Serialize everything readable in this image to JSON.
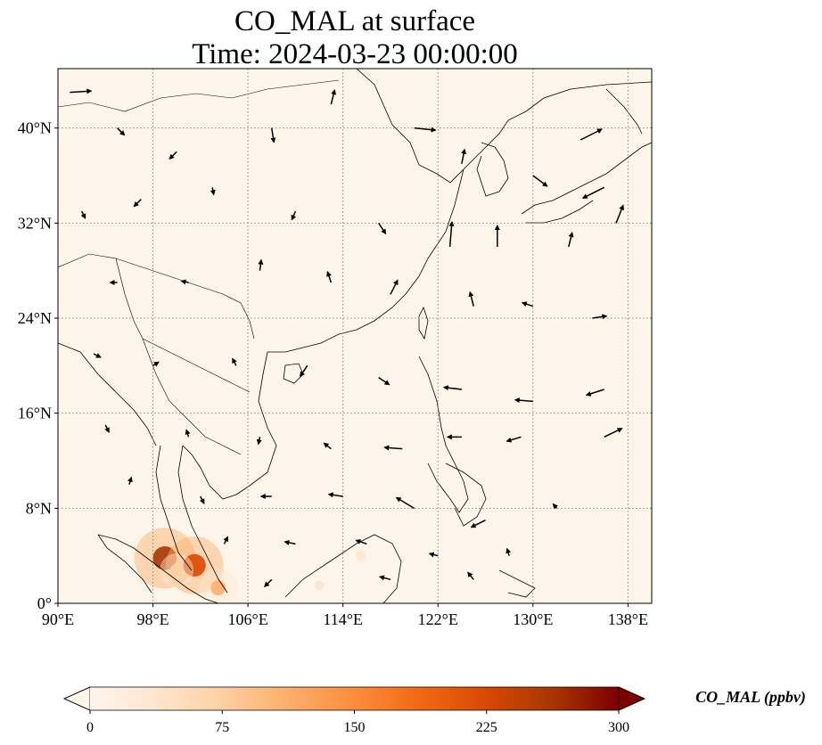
{
  "title": {
    "line1": "CO_MAL at surface",
    "line2": "Time: 2024-03-23 00:00:00"
  },
  "map": {
    "lon_range": [
      90,
      140
    ],
    "lat_range": [
      0,
      45
    ],
    "lon_ticks": [
      {
        "value": 90,
        "label": "90°E"
      },
      {
        "value": 98,
        "label": "98°E"
      },
      {
        "value": 106,
        "label": "106°E"
      },
      {
        "value": 114,
        "label": "114°E"
      },
      {
        "value": 122,
        "label": "122°E"
      },
      {
        "value": 130,
        "label": "130°E"
      },
      {
        "value": 138,
        "label": "138°E"
      }
    ],
    "lat_ticks": [
      {
        "value": 0,
        "label": "0°"
      },
      {
        "value": 8,
        "label": "8°N"
      },
      {
        "value": 16,
        "label": "16°N"
      },
      {
        "value": 24,
        "label": "24°N"
      },
      {
        "value": 32,
        "label": "32°N"
      },
      {
        "value": 40,
        "label": "40°N"
      }
    ],
    "gridlines": true,
    "background_color": "#fef6eb",
    "hotspots": [
      {
        "lon": 99.0,
        "lat": 3.8,
        "value": 260
      },
      {
        "lon": 101.5,
        "lat": 3.2,
        "value": 240
      },
      {
        "lon": 100.0,
        "lat": 2.8,
        "value": 90
      },
      {
        "lon": 103.5,
        "lat": 1.3,
        "value": 120
      },
      {
        "lon": 115.5,
        "lat": 4.0,
        "value": 40
      },
      {
        "lon": 112.0,
        "lat": 1.5,
        "value": 30
      }
    ],
    "wind_vectors": [
      {
        "lon": 91,
        "lat": 43,
        "u": 3,
        "v": 0.2
      },
      {
        "lon": 95,
        "lat": 40,
        "u": 1,
        "v": -1
      },
      {
        "lon": 100,
        "lat": 38,
        "u": -1,
        "v": -1
      },
      {
        "lon": 108,
        "lat": 40,
        "u": 0.3,
        "v": -2
      },
      {
        "lon": 113,
        "lat": 42,
        "u": 0.5,
        "v": 2
      },
      {
        "lon": 120,
        "lat": 40,
        "u": 3,
        "v": -0.3
      },
      {
        "lon": 124,
        "lat": 37,
        "u": 0.4,
        "v": 2
      },
      {
        "lon": 130,
        "lat": 36,
        "u": 2,
        "v": -1.5
      },
      {
        "lon": 134,
        "lat": 39,
        "u": 3,
        "v": 1.5
      },
      {
        "lon": 136,
        "lat": 35,
        "u": -3,
        "v": -1.5
      },
      {
        "lon": 92,
        "lat": 33,
        "u": 0.5,
        "v": -1
      },
      {
        "lon": 97,
        "lat": 34,
        "u": -1,
        "v": -1
      },
      {
        "lon": 103,
        "lat": 35,
        "u": 0.2,
        "v": -1
      },
      {
        "lon": 110,
        "lat": 33,
        "u": -0.5,
        "v": -1.2
      },
      {
        "lon": 117,
        "lat": 32,
        "u": 1,
        "v": -1.5
      },
      {
        "lon": 123,
        "lat": 30,
        "u": 0.3,
        "v": 3.5
      },
      {
        "lon": 127,
        "lat": 30,
        "u": 0,
        "v": 3
      },
      {
        "lon": 133,
        "lat": 30,
        "u": 0.5,
        "v": 2
      },
      {
        "lon": 137,
        "lat": 32,
        "u": 1,
        "v": 2.5
      },
      {
        "lon": 95,
        "lat": 27,
        "u": -1,
        "v": 0
      },
      {
        "lon": 101,
        "lat": 27,
        "u": -1,
        "v": 0.2
      },
      {
        "lon": 107,
        "lat": 28,
        "u": 0.2,
        "v": 1.5
      },
      {
        "lon": 113,
        "lat": 27,
        "u": -0.5,
        "v": 1.5
      },
      {
        "lon": 118,
        "lat": 26,
        "u": 1,
        "v": 2
      },
      {
        "lon": 125,
        "lat": 25,
        "u": -0.5,
        "v": 2
      },
      {
        "lon": 130,
        "lat": 25,
        "u": -1.5,
        "v": 0.5
      },
      {
        "lon": 135,
        "lat": 24,
        "u": 2,
        "v": 0.3
      },
      {
        "lon": 93,
        "lat": 21,
        "u": 1,
        "v": -0.5
      },
      {
        "lon": 98,
        "lat": 20,
        "u": 0.8,
        "v": 0.5
      },
      {
        "lon": 105,
        "lat": 20,
        "u": -0.5,
        "v": 1
      },
      {
        "lon": 111,
        "lat": 20,
        "u": -1,
        "v": -1.5
      },
      {
        "lon": 117,
        "lat": 19,
        "u": 1.5,
        "v": -1
      },
      {
        "lon": 124,
        "lat": 18,
        "u": -2.5,
        "v": 0.3
      },
      {
        "lon": 130,
        "lat": 17,
        "u": -2.5,
        "v": 0.2
      },
      {
        "lon": 136,
        "lat": 18,
        "u": -2.5,
        "v": -0.8
      },
      {
        "lon": 94,
        "lat": 15,
        "u": 0.5,
        "v": -1
      },
      {
        "lon": 101,
        "lat": 14,
        "u": -0.3,
        "v": 1
      },
      {
        "lon": 107,
        "lat": 14,
        "u": -0.2,
        "v": -1
      },
      {
        "lon": 113,
        "lat": 13,
        "u": -1,
        "v": 0.8
      },
      {
        "lon": 119,
        "lat": 13,
        "u": -2.5,
        "v": 0.2
      },
      {
        "lon": 124,
        "lat": 14,
        "u": -2,
        "v": 0
      },
      {
        "lon": 129,
        "lat": 14,
        "u": -2,
        "v": -0.6
      },
      {
        "lon": 136,
        "lat": 14,
        "u": 2.5,
        "v": 1.2
      },
      {
        "lon": 96,
        "lat": 10,
        "u": 0.3,
        "v": 1
      },
      {
        "lon": 102,
        "lat": 9,
        "u": 0.5,
        "v": -1
      },
      {
        "lon": 108,
        "lat": 9,
        "u": -1.5,
        "v": 0
      },
      {
        "lon": 114,
        "lat": 9,
        "u": -2,
        "v": 0.3
      },
      {
        "lon": 120,
        "lat": 8,
        "u": -2.5,
        "v": 1.5
      },
      {
        "lon": 126,
        "lat": 7,
        "u": -2,
        "v": -1
      },
      {
        "lon": 132,
        "lat": 8,
        "u": -0.5,
        "v": 0.6
      },
      {
        "lon": 104,
        "lat": 5,
        "u": 0.5,
        "v": 1
      },
      {
        "lon": 110,
        "lat": 5,
        "u": -1.5,
        "v": 0.3
      },
      {
        "lon": 116,
        "lat": 5,
        "u": -1.5,
        "v": 0.5
      },
      {
        "lon": 122,
        "lat": 4,
        "u": -1.2,
        "v": 0.3
      },
      {
        "lon": 128,
        "lat": 4,
        "u": -0.3,
        "v": 1
      },
      {
        "lon": 108,
        "lat": 2,
        "u": -1,
        "v": -1
      },
      {
        "lon": 118,
        "lat": 2,
        "u": -1.5,
        "v": 0.4
      },
      {
        "lon": 125,
        "lat": 2,
        "u": -0.8,
        "v": 1
      }
    ]
  },
  "colorbar": {
    "ticks": [
      "0",
      "75",
      "150",
      "225",
      "300"
    ],
    "tick_values": [
      0,
      75,
      150,
      225,
      300
    ],
    "range": [
      0,
      300
    ],
    "label": "CO_MAL (ppbv)",
    "colors": [
      "#fff5eb",
      "#fee6ce",
      "#fdd0a2",
      "#fdae6b",
      "#fd8d3c",
      "#f16913",
      "#d94801",
      "#a63603",
      "#7f0000"
    ]
  }
}
